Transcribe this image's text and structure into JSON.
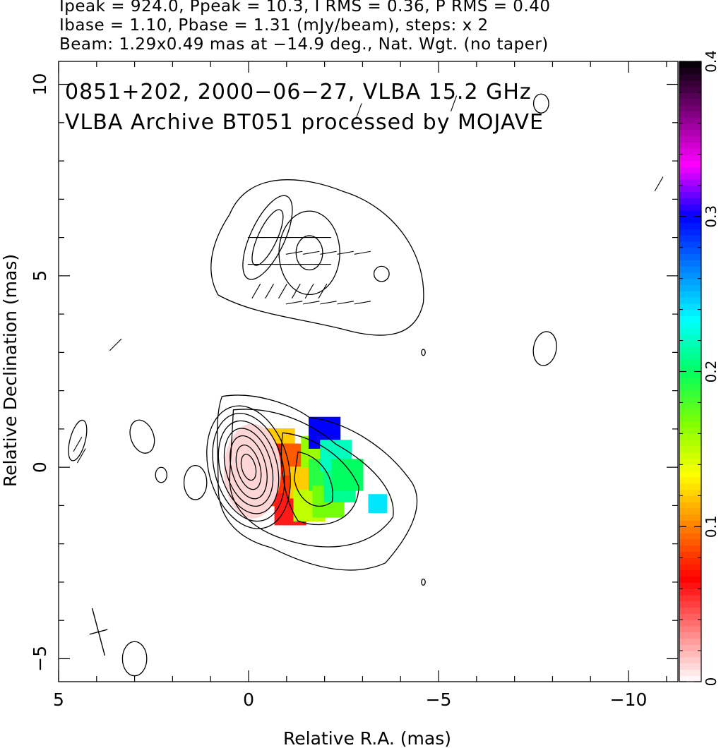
{
  "header": {
    "line1": "Ipeak = 924.0, Ppeak = 10.3, I RMS = 0.36, P RMS = 0.40",
    "line2": "Ibase = 1.10, Pbase = 1.31 (mJy/beam), steps: x 2",
    "line3": "Beam: 1.29x0.49 mas at −14.9 deg., Nat. Wgt. (no taper)"
  },
  "chart_data": {
    "type": "heatmap",
    "title_line1": "0851+202, 2000−06−27, VLBA 15.2 GHz",
    "title_line2": "VLBA Archive BT051 processed by MOJAVE",
    "xlabel": "Relative R.A. (mas)",
    "ylabel": "Relative Declination (mas)",
    "xlim": [
      5.0,
      -11.3
    ],
    "ylim": [
      -5.6,
      10.6
    ],
    "x_ticks": [
      5,
      0,
      -5,
      -10
    ],
    "x_tick_labels": [
      "5",
      "0",
      "−5",
      "−10"
    ],
    "y_ticks": [
      -5,
      0,
      5,
      10
    ],
    "y_tick_labels": [
      "−5",
      "0",
      "5",
      "10"
    ],
    "colorbar": {
      "range": [
        0,
        0.4
      ],
      "ticks": [
        0,
        0.1,
        0.2,
        0.3,
        0.4
      ],
      "tick_labels": [
        "0",
        "0.1",
        "0.2",
        "0.3",
        "0.4"
      ],
      "colors": [
        "#ffffff",
        "#ff8080",
        "#ff0000",
        "#ff8000",
        "#ffff00",
        "#80ff00",
        "#00ff60",
        "#00ffff",
        "#0080ff",
        "#0000ff",
        "#ff00ff",
        "#800080",
        "#000000"
      ]
    },
    "intensity": {
      "peak_mJy_per_beam": 924.0,
      "rms_mJy_per_beam": 0.36,
      "base_mJy_per_beam": 1.1,
      "contour_step_factor": 2,
      "core": {
        "x": 0.0,
        "y": 0.0
      },
      "secondary_components": [
        {
          "x": -1.6,
          "y": 5.6
        },
        {
          "x": -0.5,
          "y": 6.0
        }
      ]
    },
    "polarization": {
      "peak_mJy_per_beam": 10.3,
      "rms_mJy_per_beam": 0.4,
      "base_mJy_per_beam": 1.31
    },
    "beam": {
      "major_mas": 1.29,
      "minor_mas": 0.49,
      "pa_deg": -14.9,
      "center": {
        "x": 3.95,
        "y": -4.3
      }
    },
    "fractional_polarization_map": [
      {
        "x": -0.8,
        "y": 0.6,
        "value": 0.12
      },
      {
        "x": -0.9,
        "y": 0.2,
        "value": 0.07
      },
      {
        "x": -1.0,
        "y": -0.6,
        "value": 0.08
      },
      {
        "x": -1.1,
        "y": -1.1,
        "value": 0.06
      },
      {
        "x": -1.3,
        "y": 0.2,
        "value": 0.09
      },
      {
        "x": -1.5,
        "y": -0.4,
        "value": 0.12
      },
      {
        "x": -1.6,
        "y": -1.0,
        "value": 0.15
      },
      {
        "x": -1.8,
        "y": 0.4,
        "value": 0.16
      },
      {
        "x": -2.0,
        "y": 0.9,
        "value": 0.3
      },
      {
        "x": -2.0,
        "y": -0.2,
        "value": 0.19
      },
      {
        "x": -2.1,
        "y": -0.9,
        "value": 0.17
      },
      {
        "x": -2.3,
        "y": 0.3,
        "value": 0.22
      },
      {
        "x": -2.4,
        "y": -0.5,
        "value": 0.21
      },
      {
        "x": -2.6,
        "y": -0.2,
        "value": 0.2
      },
      {
        "x": -3.4,
        "y": -0.95,
        "value": 0.24
      }
    ]
  }
}
